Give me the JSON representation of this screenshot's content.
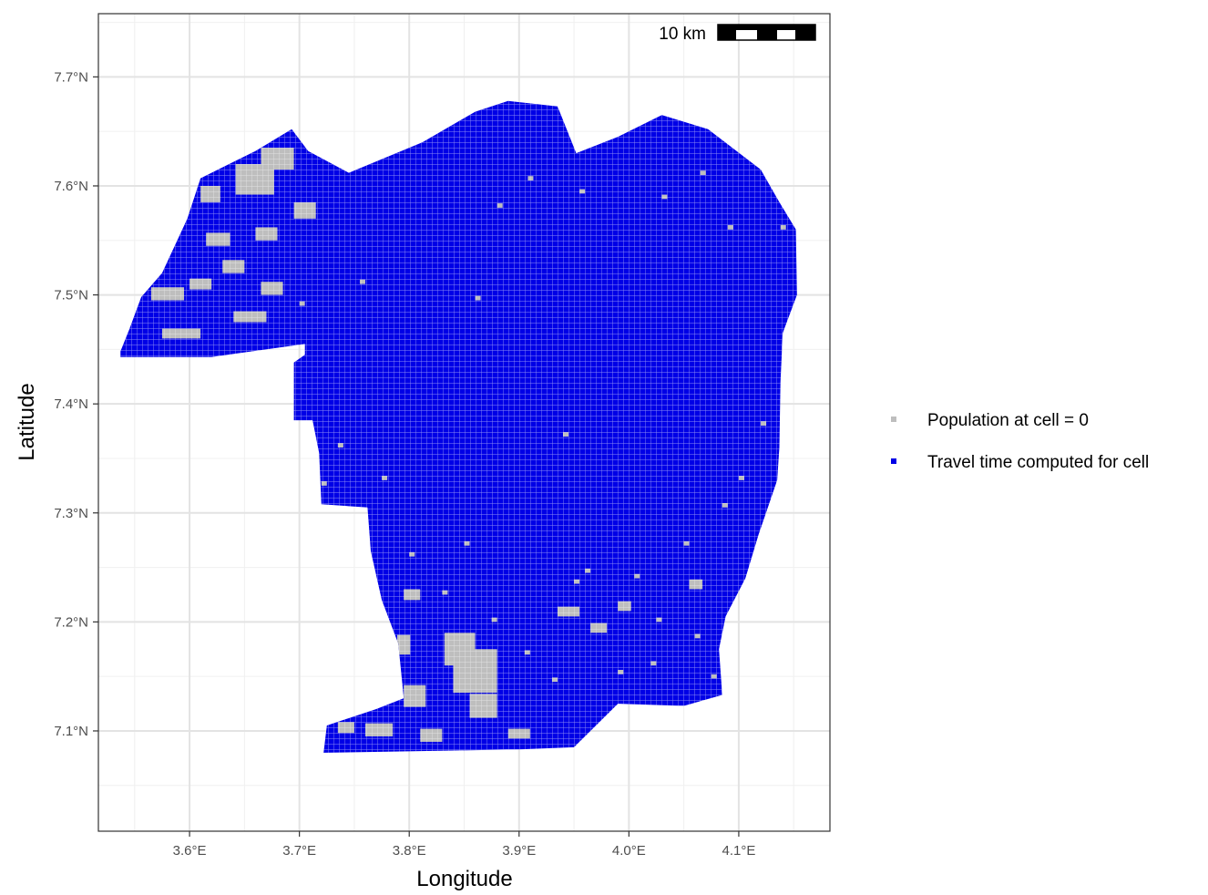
{
  "chart_data": {
    "type": "map",
    "xlabel": "Longitude",
    "ylabel": "Latitude",
    "xlim": [
      3.517,
      4.183
    ],
    "ylim": [
      7.008,
      7.758
    ],
    "x_ticks": [
      3.6,
      3.7,
      3.8,
      3.9,
      4.0,
      4.1
    ],
    "x_tick_labels": [
      "3.6°E",
      "3.7°E",
      "3.8°E",
      "3.9°E",
      "4.0°E",
      "4.1°E"
    ],
    "y_ticks": [
      7.1,
      7.2,
      7.3,
      7.4,
      7.5,
      7.6,
      7.7
    ],
    "y_tick_labels": [
      "7.1°N",
      "7.2°N",
      "7.3°N",
      "7.4°N",
      "7.5°N",
      "7.6°N",
      "7.7°N"
    ],
    "grid": true,
    "legend_position": "right",
    "legend": [
      {
        "label": "Population at cell = 0",
        "color": "#bebebe"
      },
      {
        "label": "Travel time computed for cell",
        "color": "#0000e6"
      }
    ],
    "scale_bar": {
      "label": "10 km"
    },
    "region_outline": [
      [
        3.537,
        7.448
      ],
      [
        3.545,
        7.468
      ],
      [
        3.556,
        7.498
      ],
      [
        3.575,
        7.52
      ],
      [
        3.598,
        7.57
      ],
      [
        3.61,
        7.607
      ],
      [
        3.66,
        7.632
      ],
      [
        3.693,
        7.652
      ],
      [
        3.708,
        7.632
      ],
      [
        3.745,
        7.612
      ],
      [
        3.812,
        7.64
      ],
      [
        3.86,
        7.668
      ],
      [
        3.89,
        7.678
      ],
      [
        3.935,
        7.673
      ],
      [
        3.952,
        7.63
      ],
      [
        3.99,
        7.645
      ],
      [
        4.03,
        7.665
      ],
      [
        4.072,
        7.652
      ],
      [
        4.12,
        7.615
      ],
      [
        4.137,
        7.585
      ],
      [
        4.152,
        7.56
      ],
      [
        4.153,
        7.5
      ],
      [
        4.14,
        7.465
      ],
      [
        4.138,
        7.42
      ],
      [
        4.137,
        7.36
      ],
      [
        4.135,
        7.33
      ],
      [
        4.118,
        7.28
      ],
      [
        4.106,
        7.24
      ],
      [
        4.088,
        7.205
      ],
      [
        4.082,
        7.175
      ],
      [
        4.085,
        7.133
      ],
      [
        4.05,
        7.123
      ],
      [
        3.99,
        7.125
      ],
      [
        3.95,
        7.085
      ],
      [
        3.9,
        7.083
      ],
      [
        3.84,
        7.082
      ],
      [
        3.78,
        7.081
      ],
      [
        3.722,
        7.08
      ],
      [
        3.725,
        7.105
      ],
      [
        3.77,
        7.12
      ],
      [
        3.795,
        7.13
      ],
      [
        3.79,
        7.18
      ],
      [
        3.775,
        7.22
      ],
      [
        3.765,
        7.265
      ],
      [
        3.762,
        7.305
      ],
      [
        3.72,
        7.308
      ],
      [
        3.718,
        7.355
      ],
      [
        3.712,
        7.385
      ],
      [
        3.695,
        7.385
      ],
      [
        3.695,
        7.438
      ],
      [
        3.705,
        7.445
      ],
      [
        3.705,
        7.455
      ],
      [
        3.62,
        7.443
      ],
      [
        3.537,
        7.443
      ]
    ],
    "zero_population_zones": [
      [
        3.642,
        7.592,
        0.035,
        0.028
      ],
      [
        3.665,
        7.615,
        0.03,
        0.02
      ],
      [
        3.61,
        7.585,
        0.018,
        0.015
      ],
      [
        3.615,
        7.545,
        0.022,
        0.012
      ],
      [
        3.66,
        7.55,
        0.02,
        0.012
      ],
      [
        3.695,
        7.57,
        0.02,
        0.015
      ],
      [
        3.565,
        7.495,
        0.03,
        0.012
      ],
      [
        3.6,
        7.505,
        0.02,
        0.01
      ],
      [
        3.575,
        7.46,
        0.035,
        0.009
      ],
      [
        3.64,
        7.475,
        0.03,
        0.01
      ],
      [
        3.665,
        7.5,
        0.02,
        0.012
      ],
      [
        3.63,
        7.52,
        0.02,
        0.012
      ],
      [
        3.84,
        7.135,
        0.04,
        0.04
      ],
      [
        3.832,
        7.16,
        0.028,
        0.03
      ],
      [
        3.855,
        7.112,
        0.025,
        0.022
      ],
      [
        3.76,
        7.095,
        0.025,
        0.012
      ],
      [
        3.81,
        7.09,
        0.02,
        0.012
      ],
      [
        3.89,
        7.093,
        0.02,
        0.009
      ],
      [
        3.735,
        7.098,
        0.015,
        0.01
      ],
      [
        3.789,
        7.17,
        0.012,
        0.018
      ],
      [
        3.795,
        7.122,
        0.02,
        0.02
      ],
      [
        3.935,
        7.205,
        0.02,
        0.009
      ],
      [
        3.965,
        7.19,
        0.015,
        0.009
      ],
      [
        4.055,
        7.23,
        0.012,
        0.009
      ],
      [
        4.1,
        7.16,
        0.01,
        0.009
      ],
      [
        3.795,
        7.22,
        0.015,
        0.01
      ],
      [
        3.99,
        7.21,
        0.012,
        0.009
      ]
    ],
    "zero_population_cells": [
      [
        3.908,
        7.605
      ],
      [
        3.955,
        7.593
      ],
      [
        4.03,
        7.588
      ],
      [
        4.09,
        7.56
      ],
      [
        3.86,
        7.495
      ],
      [
        4.138,
        7.56
      ],
      [
        4.14,
        7.44
      ],
      [
        3.88,
        7.58
      ],
      [
        3.95,
        7.64
      ],
      [
        4.065,
        7.61
      ],
      [
        3.755,
        7.51
      ],
      [
        3.7,
        7.49
      ],
      [
        3.94,
        7.37
      ],
      [
        4.12,
        7.38
      ],
      [
        3.85,
        7.27
      ],
      [
        3.83,
        7.225
      ],
      [
        3.96,
        7.245
      ],
      [
        4.05,
        7.27
      ],
      [
        4.085,
        7.305
      ],
      [
        4.1,
        7.33
      ],
      [
        3.775,
        7.33
      ],
      [
        3.735,
        7.36
      ],
      [
        3.72,
        7.325
      ],
      [
        3.99,
        7.152
      ],
      [
        4.02,
        7.16
      ],
      [
        3.93,
        7.145
      ],
      [
        3.905,
        7.17
      ],
      [
        3.875,
        7.2
      ],
      [
        4.06,
        7.185
      ],
      [
        4.075,
        7.148
      ],
      [
        4.095,
        7.14
      ],
      [
        3.8,
        7.26
      ],
      [
        3.95,
        7.235
      ],
      [
        4.025,
        7.2
      ],
      [
        4.005,
        7.24
      ]
    ]
  }
}
